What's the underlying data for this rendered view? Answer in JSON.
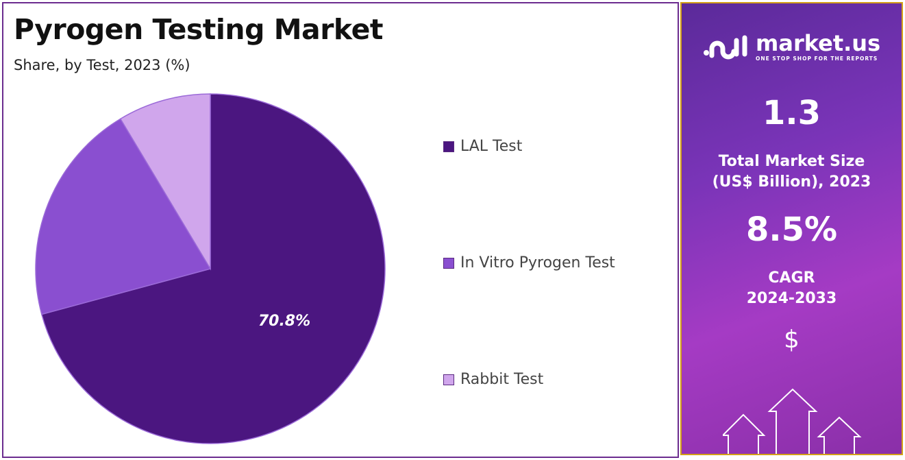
{
  "chart_data": {
    "type": "pie",
    "title": "Pyrogen Testing Market",
    "subtitle": "Share, by Test, 2023 (%)",
    "categories": [
      "LAL Test",
      "In Vitro Pyrogen Test",
      "Rabbit Test"
    ],
    "values": [
      70.8,
      20.6,
      8.6
    ],
    "colors": [
      "#4b1680",
      "#8a4fd0",
      "#d0a6ec"
    ],
    "data_labels": [
      "70.8%"
    ],
    "legend_position": "right"
  },
  "side_panel": {
    "brand": "market.us",
    "tagline": "ONE STOP SHOP FOR THE REPORTS",
    "market_size": "1.3",
    "market_size_label_1": "Total Market Size",
    "market_size_label_2": "(US$ Billion), 2023",
    "cagr": "8.5%",
    "cagr_label_1": "CAGR",
    "cagr_label_2": "2024-2033",
    "currency_symbol": "$"
  }
}
